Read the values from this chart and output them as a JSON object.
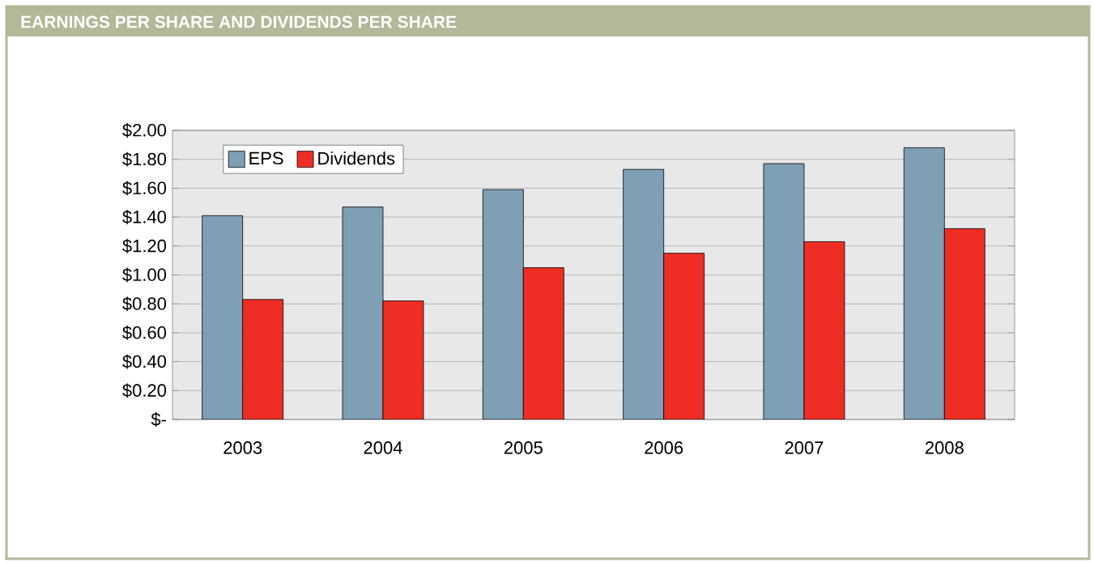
{
  "chart_data": {
    "type": "bar",
    "title": "EARNINGS PER SHARE AND DIVIDENDS PER SHARE",
    "categories": [
      "2003",
      "2004",
      "2005",
      "2006",
      "2007",
      "2008"
    ],
    "series": [
      {
        "name": "EPS",
        "color": "#7f9fb5",
        "values": [
          1.41,
          1.47,
          1.59,
          1.73,
          1.77,
          1.88
        ]
      },
      {
        "name": "Dividends",
        "color": "#ee2e24",
        "values": [
          0.83,
          0.82,
          1.05,
          1.15,
          1.23,
          1.32
        ]
      }
    ],
    "ylim": [
      0,
      2
    ],
    "yticks": [
      {
        "value": 0,
        "label": "$-"
      },
      {
        "value": 0.2,
        "label": "$0.20"
      },
      {
        "value": 0.4,
        "label": "$0.40"
      },
      {
        "value": 0.6,
        "label": "$0.60"
      },
      {
        "value": 0.8,
        "label": "$0.80"
      },
      {
        "value": 1.0,
        "label": "$1.00"
      },
      {
        "value": 1.2,
        "label": "$1.20"
      },
      {
        "value": 1.4,
        "label": "$1.40"
      },
      {
        "value": 1.6,
        "label": "$1.60"
      },
      {
        "value": 1.8,
        "label": "$1.80"
      },
      {
        "value": 2.0,
        "label": "$2.00"
      }
    ],
    "grid": "y",
    "legend": "top left"
  }
}
